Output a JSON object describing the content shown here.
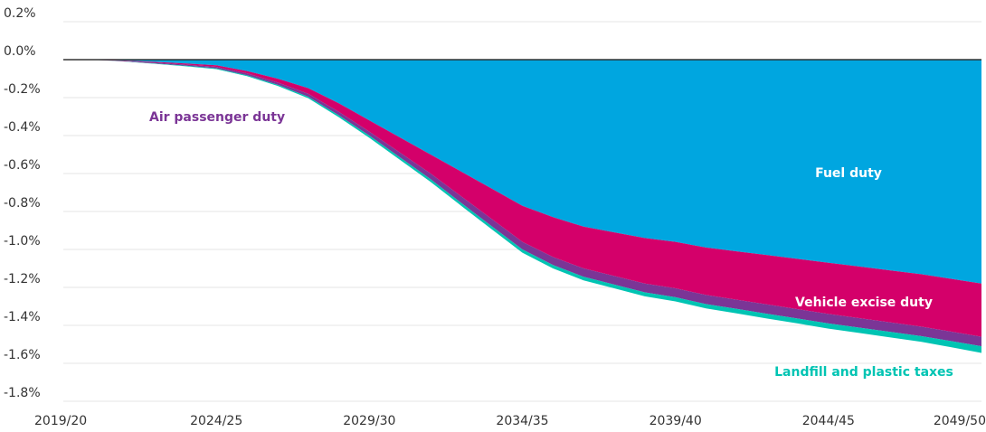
{
  "chart_data": {
    "type": "stacked_area",
    "categories": [
      "2019/20",
      null,
      null,
      null,
      null,
      "2024/25",
      null,
      null,
      null,
      null,
      "2029/30",
      null,
      null,
      null,
      null,
      "2034/35",
      null,
      null,
      null,
      null,
      "2039/40",
      null,
      null,
      null,
      null,
      "2044/45",
      null,
      null,
      null,
      null,
      "2049/50"
    ],
    "series": [
      {
        "name": "Fuel duty",
        "color": "#00a6e0",
        "values": [
          0,
          -0.001,
          -0.005,
          -0.012,
          -0.02,
          -0.03,
          -0.06,
          -0.1,
          -0.15,
          -0.23,
          -0.32,
          -0.41,
          -0.5,
          -0.59,
          -0.68,
          -0.77,
          -0.83,
          -0.88,
          -0.91,
          -0.94,
          -0.96,
          -0.99,
          -1.01,
          -1.03,
          -1.05,
          -1.07,
          -1.09,
          -1.11,
          -1.13,
          -1.155,
          -1.18
        ]
      },
      {
        "name": "Vehicle excise duty",
        "color": "#d4006a",
        "values": [
          0,
          0,
          -0.002,
          -0.004,
          -0.006,
          -0.008,
          -0.012,
          -0.02,
          -0.03,
          -0.045,
          -0.06,
          -0.08,
          -0.1,
          -0.13,
          -0.16,
          -0.19,
          -0.21,
          -0.22,
          -0.23,
          -0.24,
          -0.245,
          -0.25,
          -0.255,
          -0.26,
          -0.265,
          -0.27,
          -0.272,
          -0.274,
          -0.276,
          -0.278,
          -0.28
        ]
      },
      {
        "name": "Air passenger duty",
        "color": "#7b3596",
        "values": [
          0,
          0,
          -0.002,
          -0.004,
          -0.006,
          -0.008,
          -0.01,
          -0.012,
          -0.015,
          -0.018,
          -0.02,
          -0.025,
          -0.03,
          -0.035,
          -0.038,
          -0.04,
          -0.042,
          -0.044,
          -0.045,
          -0.046,
          -0.047,
          -0.048,
          -0.048,
          -0.049,
          -0.049,
          -0.05,
          -0.05,
          -0.05,
          -0.05,
          -0.05,
          -0.05
        ]
      },
      {
        "name": "Landfill and plastic taxes",
        "color": "#00c4b3",
        "values": [
          0,
          0,
          -0.001,
          -0.002,
          -0.003,
          -0.004,
          -0.005,
          -0.006,
          -0.008,
          -0.01,
          -0.012,
          -0.013,
          -0.014,
          -0.015,
          -0.016,
          -0.017,
          -0.018,
          -0.019,
          -0.02,
          -0.021,
          -0.022,
          -0.023,
          -0.024,
          -0.025,
          -0.026,
          -0.027,
          -0.028,
          -0.029,
          -0.03,
          -0.032,
          -0.035
        ]
      }
    ],
    "ylim": [
      -1.8,
      0.2
    ],
    "yticks": [
      {
        "value": 0.2,
        "label": "0.2%"
      },
      {
        "value": 0,
        "label": "0.0%"
      },
      {
        "value": -0.2,
        "label": "-0.2%"
      },
      {
        "value": -0.4,
        "label": "-0.4%"
      },
      {
        "value": -0.6,
        "label": "-0.6%"
      },
      {
        "value": -0.8,
        "label": "-0.8%"
      },
      {
        "value": -1,
        "label": "-1.0%"
      },
      {
        "value": -1.2,
        "label": "-1.2%"
      },
      {
        "value": -1.4,
        "label": "-1.4%"
      },
      {
        "value": -1.6,
        "label": "-1.6%"
      },
      {
        "value": -1.8,
        "label": "-1.8%"
      }
    ],
    "grid": true
  }
}
